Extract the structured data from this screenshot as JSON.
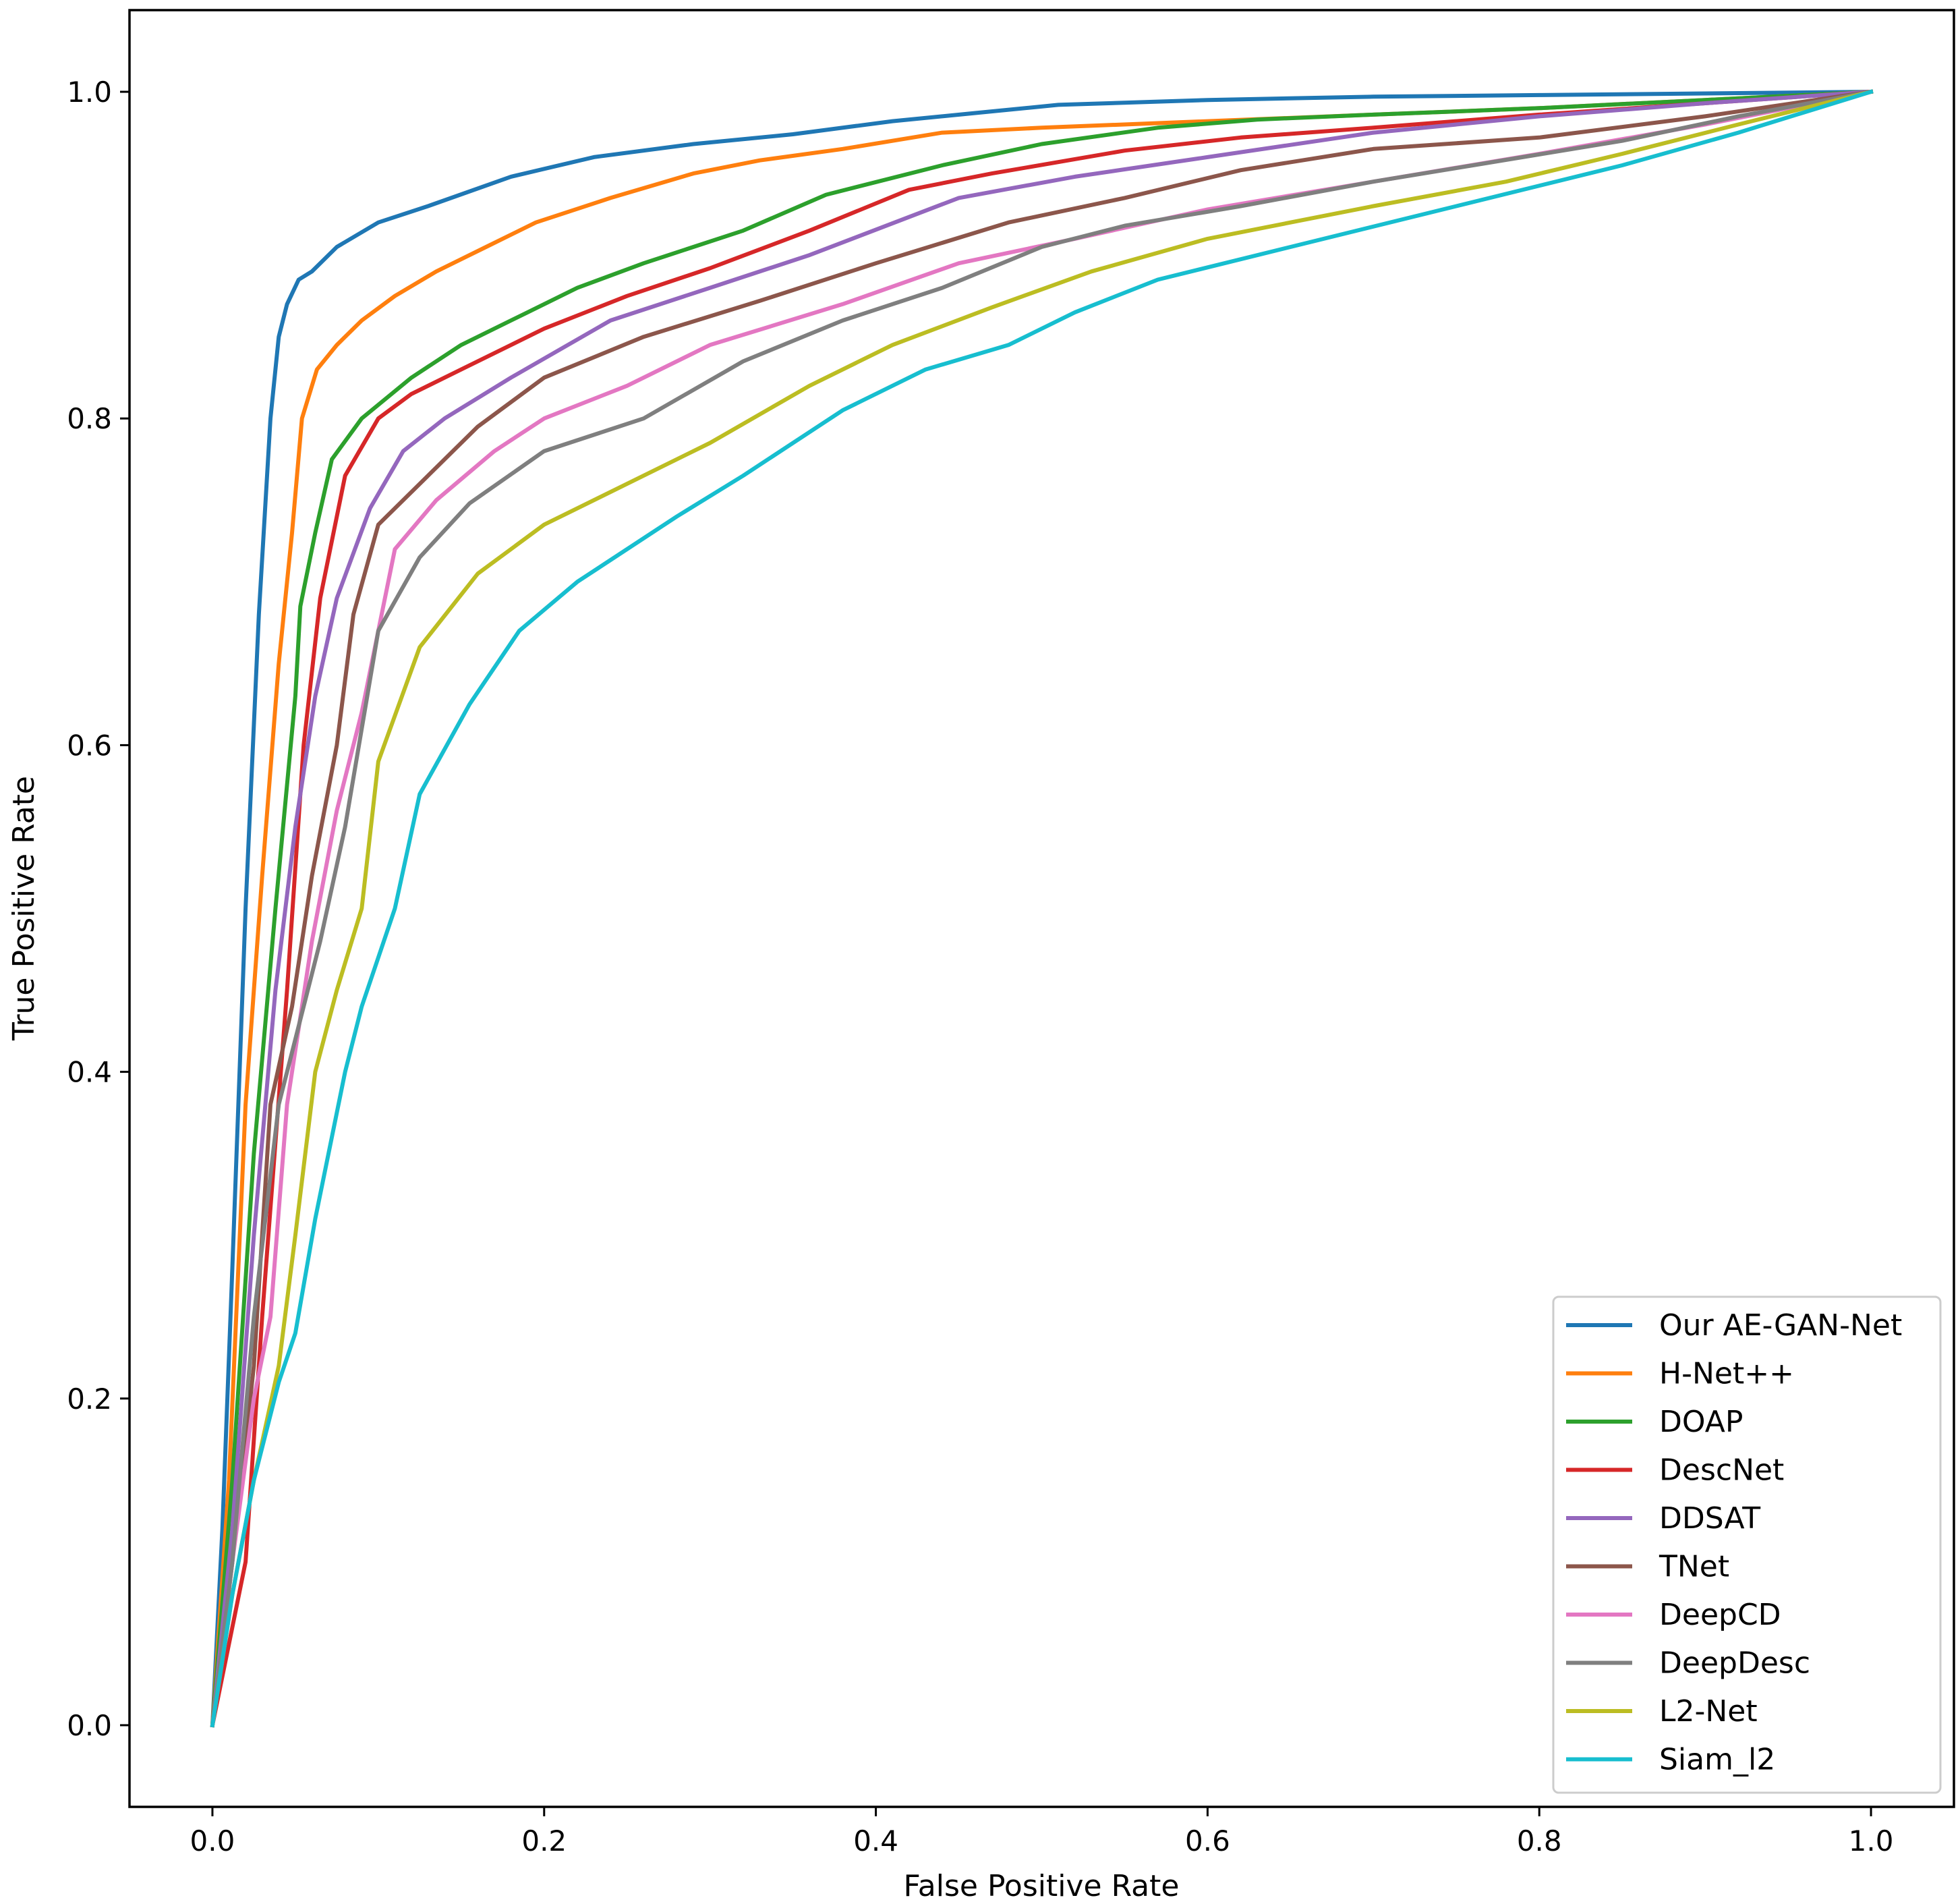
{
  "chart_data": {
    "type": "line",
    "title": "",
    "xlabel": "False Positive Rate",
    "ylabel": "True Positive Rate",
    "xlim": [
      -0.05,
      1.05
    ],
    "ylim": [
      -0.05,
      1.05
    ],
    "xticks": [
      0.0,
      0.2,
      0.4,
      0.6,
      0.8,
      1.0
    ],
    "yticks": [
      0.0,
      0.2,
      0.4,
      0.6,
      0.8,
      1.0
    ],
    "xtick_labels": [
      "0.0",
      "0.2",
      "0.4",
      "0.6",
      "0.8",
      "1.0"
    ],
    "ytick_labels": [
      "0.0",
      "0.2",
      "0.4",
      "0.6",
      "0.8",
      "1.0"
    ],
    "grid": false,
    "legend_position": "lower-right",
    "series": [
      {
        "name": "Our AE-GAN-Net",
        "color": "#1f77b4",
        "x": [
          0,
          0.006,
          0.012,
          0.02,
          0.028,
          0.035,
          0.04,
          0.045,
          0.052,
          0.06,
          0.075,
          0.1,
          0.13,
          0.18,
          0.23,
          0.29,
          0.35,
          0.41,
          0.46,
          0.51,
          0.6,
          0.7,
          0.8,
          0.9,
          1.0
        ],
        "y": [
          0,
          0.12,
          0.28,
          0.5,
          0.68,
          0.8,
          0.85,
          0.87,
          0.885,
          0.89,
          0.905,
          0.92,
          0.93,
          0.948,
          0.96,
          0.968,
          0.974,
          0.982,
          0.987,
          0.992,
          0.995,
          0.997,
          0.998,
          0.999,
          1.0
        ]
      },
      {
        "name": "H-Net++",
        "color": "#ff7f0e",
        "x": [
          0,
          0.01,
          0.02,
          0.03,
          0.04,
          0.048,
          0.054,
          0.063,
          0.075,
          0.09,
          0.11,
          0.135,
          0.165,
          0.195,
          0.24,
          0.29,
          0.33,
          0.38,
          0.44,
          0.5,
          0.6,
          0.7,
          0.8,
          0.9,
          1.0
        ],
        "y": [
          0,
          0.15,
          0.38,
          0.52,
          0.65,
          0.73,
          0.8,
          0.83,
          0.845,
          0.86,
          0.875,
          0.89,
          0.905,
          0.92,
          0.935,
          0.95,
          0.958,
          0.965,
          0.975,
          0.978,
          0.982,
          0.986,
          0.99,
          0.995,
          1.0
        ]
      },
      {
        "name": "DOAP",
        "color": "#2ca02c",
        "x": [
          0,
          0.012,
          0.025,
          0.038,
          0.05,
          0.053,
          0.062,
          0.072,
          0.09,
          0.12,
          0.15,
          0.19,
          0.22,
          0.26,
          0.32,
          0.37,
          0.44,
          0.5,
          0.57,
          0.63,
          0.7,
          0.8,
          0.9,
          1.0
        ],
        "y": [
          0,
          0.15,
          0.35,
          0.5,
          0.63,
          0.685,
          0.73,
          0.775,
          0.8,
          0.825,
          0.845,
          0.865,
          0.88,
          0.895,
          0.915,
          0.937,
          0.955,
          0.968,
          0.978,
          0.983,
          0.986,
          0.99,
          0.995,
          1.0
        ]
      },
      {
        "name": "DescNet",
        "color": "#d62728",
        "x": [
          0,
          0.012,
          0.02,
          0.03,
          0.045,
          0.055,
          0.065,
          0.08,
          0.1,
          0.12,
          0.15,
          0.2,
          0.25,
          0.3,
          0.36,
          0.42,
          0.47,
          0.55,
          0.62,
          0.7,
          0.8,
          0.9,
          1.0
        ],
        "y": [
          0,
          0.06,
          0.1,
          0.25,
          0.45,
          0.6,
          0.69,
          0.765,
          0.8,
          0.815,
          0.83,
          0.855,
          0.875,
          0.892,
          0.915,
          0.94,
          0.95,
          0.964,
          0.972,
          0.978,
          0.986,
          0.993,
          1.0
        ]
      },
      {
        "name": "DDSAT",
        "color": "#9467bd",
        "x": [
          0,
          0.012,
          0.025,
          0.038,
          0.05,
          0.062,
          0.075,
          0.095,
          0.115,
          0.14,
          0.18,
          0.24,
          0.3,
          0.36,
          0.45,
          0.52,
          0.6,
          0.7,
          0.8,
          0.9,
          1.0
        ],
        "y": [
          0,
          0.12,
          0.3,
          0.45,
          0.55,
          0.63,
          0.69,
          0.745,
          0.78,
          0.8,
          0.825,
          0.86,
          0.88,
          0.9,
          0.935,
          0.948,
          0.96,
          0.975,
          0.985,
          0.993,
          1.0
        ]
      },
      {
        "name": "TNet",
        "color": "#8c564b",
        "x": [
          0,
          0.012,
          0.025,
          0.035,
          0.048,
          0.06,
          0.075,
          0.085,
          0.1,
          0.13,
          0.16,
          0.2,
          0.26,
          0.33,
          0.4,
          0.48,
          0.55,
          0.62,
          0.7,
          0.8,
          0.9,
          1.0
        ],
        "y": [
          0,
          0.1,
          0.22,
          0.38,
          0.44,
          0.52,
          0.6,
          0.68,
          0.735,
          0.765,
          0.795,
          0.825,
          0.85,
          0.872,
          0.895,
          0.92,
          0.935,
          0.952,
          0.965,
          0.972,
          0.985,
          1.0
        ]
      },
      {
        "name": "DeepCD",
        "color": "#e377c2",
        "x": [
          0,
          0.012,
          0.025,
          0.035,
          0.045,
          0.06,
          0.075,
          0.09,
          0.11,
          0.135,
          0.17,
          0.2,
          0.25,
          0.3,
          0.38,
          0.45,
          0.52,
          0.6,
          0.7,
          0.8,
          0.9,
          1.0
        ],
        "y": [
          0,
          0.1,
          0.2,
          0.25,
          0.38,
          0.48,
          0.56,
          0.62,
          0.72,
          0.75,
          0.78,
          0.8,
          0.82,
          0.845,
          0.87,
          0.895,
          0.91,
          0.928,
          0.945,
          0.962,
          0.98,
          1.0
        ]
      },
      {
        "name": "DeepDesc",
        "color": "#7f7f7f",
        "x": [
          0,
          0.012,
          0.025,
          0.04,
          0.05,
          0.065,
          0.08,
          0.1,
          0.125,
          0.155,
          0.2,
          0.26,
          0.32,
          0.38,
          0.44,
          0.5,
          0.55,
          0.62,
          0.7,
          0.76,
          0.85,
          0.92,
          1.0
        ],
        "y": [
          0,
          0.1,
          0.25,
          0.38,
          0.42,
          0.48,
          0.55,
          0.67,
          0.715,
          0.748,
          0.78,
          0.8,
          0.835,
          0.86,
          0.88,
          0.905,
          0.918,
          0.93,
          0.945,
          0.955,
          0.97,
          0.985,
          1.0
        ]
      },
      {
        "name": "L2-Net",
        "color": "#bcbd22",
        "x": [
          0,
          0.012,
          0.025,
          0.04,
          0.05,
          0.062,
          0.075,
          0.09,
          0.1,
          0.125,
          0.16,
          0.2,
          0.25,
          0.3,
          0.36,
          0.41,
          0.47,
          0.53,
          0.6,
          0.7,
          0.78,
          0.85,
          0.92,
          1.0
        ],
        "y": [
          0,
          0.08,
          0.15,
          0.22,
          0.3,
          0.4,
          0.45,
          0.5,
          0.59,
          0.66,
          0.705,
          0.735,
          0.76,
          0.785,
          0.82,
          0.845,
          0.868,
          0.89,
          0.91,
          0.93,
          0.945,
          0.962,
          0.98,
          1.0
        ]
      },
      {
        "name": "Siam_l2",
        "color": "#17becf",
        "x": [
          0,
          0.012,
          0.025,
          0.04,
          0.05,
          0.062,
          0.08,
          0.09,
          0.11,
          0.125,
          0.155,
          0.185,
          0.22,
          0.28,
          0.32,
          0.38,
          0.43,
          0.48,
          0.52,
          0.57,
          0.65,
          0.75,
          0.85,
          0.92,
          1.0
        ],
        "y": [
          0,
          0.08,
          0.15,
          0.21,
          0.24,
          0.31,
          0.4,
          0.44,
          0.5,
          0.57,
          0.625,
          0.67,
          0.7,
          0.74,
          0.765,
          0.805,
          0.83,
          0.845,
          0.865,
          0.885,
          0.905,
          0.93,
          0.955,
          0.975,
          1.0
        ]
      }
    ]
  }
}
